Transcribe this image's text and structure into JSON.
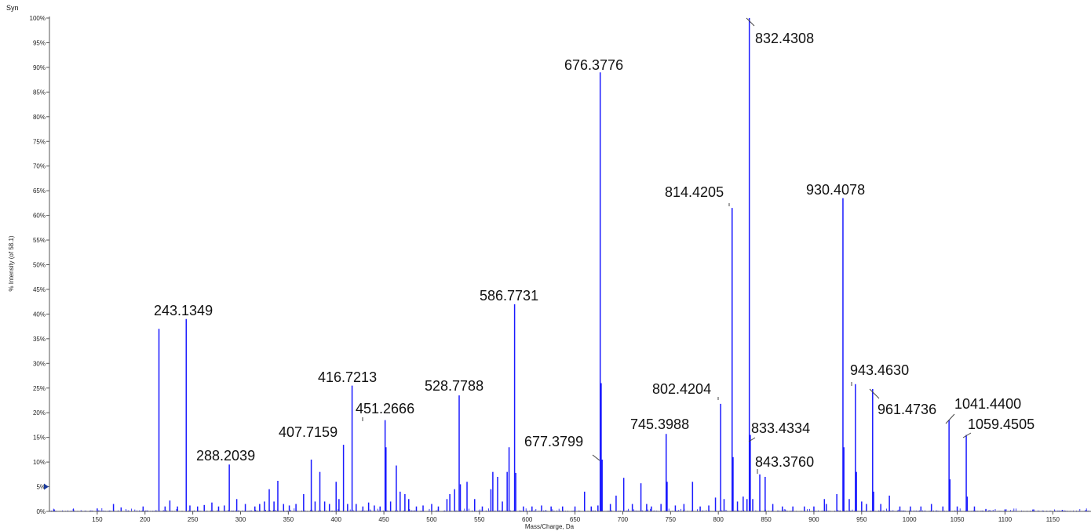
{
  "panel_label": "Syn",
  "chart_data": {
    "type": "bar",
    "title": "",
    "xlabel": "Mass/Charge, Da",
    "ylabel": "% Intensity (of 58.1)",
    "xlim": [
      100,
      1190
    ],
    "ylim": [
      0,
      100
    ],
    "xticks": [
      150,
      200,
      250,
      300,
      350,
      400,
      450,
      500,
      550,
      600,
      650,
      700,
      750,
      800,
      850,
      900,
      950,
      1000,
      1050,
      1100,
      1150
    ],
    "yticks": [
      0,
      5,
      10,
      15,
      20,
      25,
      30,
      35,
      40,
      45,
      50,
      55,
      60,
      65,
      70,
      75,
      80,
      85,
      90,
      95,
      100
    ],
    "ytick_suffix": "%",
    "marker_level": 5,
    "series_color": "#1a1aff",
    "peaks": [
      {
        "x": 105,
        "y": 0.4
      },
      {
        "x": 125,
        "y": 0.5
      },
      {
        "x": 150,
        "y": 0.6
      },
      {
        "x": 167,
        "y": 1.5
      },
      {
        "x": 175,
        "y": 0.8
      },
      {
        "x": 198,
        "y": 1.0
      },
      {
        "x": 214.6,
        "y": 37
      },
      {
        "x": 221,
        "y": 1.0
      },
      {
        "x": 226,
        "y": 2.2
      },
      {
        "x": 234,
        "y": 1.0
      },
      {
        "x": 243.1349,
        "y": 39
      },
      {
        "x": 247,
        "y": 1.2
      },
      {
        "x": 255,
        "y": 1.0
      },
      {
        "x": 262,
        "y": 1.3
      },
      {
        "x": 270,
        "y": 1.8
      },
      {
        "x": 277,
        "y": 1.0
      },
      {
        "x": 283,
        "y": 1.2
      },
      {
        "x": 288.2039,
        "y": 9.5
      },
      {
        "x": 296,
        "y": 2.5
      },
      {
        "x": 305,
        "y": 1.5
      },
      {
        "x": 315,
        "y": 1.0
      },
      {
        "x": 320,
        "y": 1.5
      },
      {
        "x": 325,
        "y": 2.0
      },
      {
        "x": 330,
        "y": 4.5
      },
      {
        "x": 335,
        "y": 2.0
      },
      {
        "x": 339,
        "y": 6.2
      },
      {
        "x": 345,
        "y": 1.5
      },
      {
        "x": 351,
        "y": 1.2
      },
      {
        "x": 358,
        "y": 1.5
      },
      {
        "x": 366,
        "y": 3.5
      },
      {
        "x": 374,
        "y": 10.5
      },
      {
        "x": 378,
        "y": 2.0
      },
      {
        "x": 383,
        "y": 8.0
      },
      {
        "x": 388,
        "y": 2.0
      },
      {
        "x": 393,
        "y": 1.5
      },
      {
        "x": 400,
        "y": 6.0
      },
      {
        "x": 403,
        "y": 2.5
      },
      {
        "x": 407.7159,
        "y": 13.5
      },
      {
        "x": 412,
        "y": 1.5
      },
      {
        "x": 416.7213,
        "y": 25.5
      },
      {
        "x": 421,
        "y": 1.5
      },
      {
        "x": 428,
        "y": 1.0
      },
      {
        "x": 434,
        "y": 1.8
      },
      {
        "x": 440,
        "y": 1.2
      },
      {
        "x": 446,
        "y": 1.0
      },
      {
        "x": 451.2666,
        "y": 18.5
      },
      {
        "x": 452.2,
        "y": 13.0
      },
      {
        "x": 457,
        "y": 2.0
      },
      {
        "x": 463,
        "y": 9.3
      },
      {
        "x": 467,
        "y": 4.0
      },
      {
        "x": 472,
        "y": 3.5
      },
      {
        "x": 476,
        "y": 2.5
      },
      {
        "x": 484,
        "y": 1.0
      },
      {
        "x": 491,
        "y": 1.2
      },
      {
        "x": 500,
        "y": 1.5
      },
      {
        "x": 507,
        "y": 1.0
      },
      {
        "x": 516,
        "y": 2.5
      },
      {
        "x": 519,
        "y": 3.5
      },
      {
        "x": 524,
        "y": 4.5
      },
      {
        "x": 528.7788,
        "y": 23.5
      },
      {
        "x": 530,
        "y": 5.5
      },
      {
        "x": 537,
        "y": 6.0
      },
      {
        "x": 545,
        "y": 2.5
      },
      {
        "x": 553,
        "y": 1.0
      },
      {
        "x": 562,
        "y": 4.5
      },
      {
        "x": 564,
        "y": 8.0
      },
      {
        "x": 569,
        "y": 7.0
      },
      {
        "x": 574,
        "y": 2.0
      },
      {
        "x": 579,
        "y": 8.0
      },
      {
        "x": 581,
        "y": 13.0
      },
      {
        "x": 586.7731,
        "y": 42
      },
      {
        "x": 588,
        "y": 7.8
      },
      {
        "x": 596,
        "y": 1.0
      },
      {
        "x": 605,
        "y": 1.0
      },
      {
        "x": 615,
        "y": 1.2
      },
      {
        "x": 625,
        "y": 1.0
      },
      {
        "x": 637,
        "y": 1.0
      },
      {
        "x": 650,
        "y": 1.0
      },
      {
        "x": 660,
        "y": 4.0
      },
      {
        "x": 667,
        "y": 1.0
      },
      {
        "x": 674,
        "y": 1.2
      },
      {
        "x": 676.3776,
        "y": 89
      },
      {
        "x": 677.3799,
        "y": 26
      },
      {
        "x": 678.4,
        "y": 10.5
      },
      {
        "x": 687,
        "y": 1.5
      },
      {
        "x": 693,
        "y": 3.2
      },
      {
        "x": 701,
        "y": 6.8
      },
      {
        "x": 710,
        "y": 1.5
      },
      {
        "x": 719,
        "y": 5.7
      },
      {
        "x": 725,
        "y": 1.5
      },
      {
        "x": 730,
        "y": 1.0
      },
      {
        "x": 740,
        "y": 1.5
      },
      {
        "x": 745.3988,
        "y": 15.7
      },
      {
        "x": 746.4,
        "y": 6.0
      },
      {
        "x": 755,
        "y": 1.2
      },
      {
        "x": 764,
        "y": 1.5
      },
      {
        "x": 773,
        "y": 6.0
      },
      {
        "x": 781,
        "y": 1.0
      },
      {
        "x": 790,
        "y": 1.2
      },
      {
        "x": 797,
        "y": 2.8
      },
      {
        "x": 802.4204,
        "y": 21.8
      },
      {
        "x": 806,
        "y": 2.5
      },
      {
        "x": 814.4205,
        "y": 61.5
      },
      {
        "x": 815.4,
        "y": 11.0
      },
      {
        "x": 820,
        "y": 2.0
      },
      {
        "x": 826,
        "y": 3.0
      },
      {
        "x": 830,
        "y": 2.5
      },
      {
        "x": 832.4308,
        "y": 100
      },
      {
        "x": 833.4334,
        "y": 15.5
      },
      {
        "x": 836,
        "y": 2.5
      },
      {
        "x": 843.376,
        "y": 7.5
      },
      {
        "x": 849,
        "y": 7.0
      },
      {
        "x": 857,
        "y": 1.5
      },
      {
        "x": 867,
        "y": 1.0
      },
      {
        "x": 878,
        "y": 1.0
      },
      {
        "x": 890,
        "y": 1.0
      },
      {
        "x": 900,
        "y": 1.0
      },
      {
        "x": 911,
        "y": 2.5
      },
      {
        "x": 913,
        "y": 1.5
      },
      {
        "x": 924,
        "y": 3.5
      },
      {
        "x": 930.4078,
        "y": 63.5
      },
      {
        "x": 931.4,
        "y": 13.0
      },
      {
        "x": 937,
        "y": 2.5
      },
      {
        "x": 943.463,
        "y": 25.8
      },
      {
        "x": 944.5,
        "y": 8.0
      },
      {
        "x": 950,
        "y": 2.0
      },
      {
        "x": 955,
        "y": 1.5
      },
      {
        "x": 961.4736,
        "y": 24.8
      },
      {
        "x": 962.5,
        "y": 4.0
      },
      {
        "x": 970,
        "y": 1.5
      },
      {
        "x": 979,
        "y": 3.2
      },
      {
        "x": 990,
        "y": 1.0
      },
      {
        "x": 1001,
        "y": 1.0
      },
      {
        "x": 1012,
        "y": 1.0
      },
      {
        "x": 1023,
        "y": 1.5
      },
      {
        "x": 1035,
        "y": 1.0
      },
      {
        "x": 1041.44,
        "y": 18.5
      },
      {
        "x": 1042.4,
        "y": 6.5
      },
      {
        "x": 1050,
        "y": 1.0
      },
      {
        "x": 1059.4505,
        "y": 15.5
      },
      {
        "x": 1060.5,
        "y": 3.0
      },
      {
        "x": 1068,
        "y": 1.0
      },
      {
        "x": 1080,
        "y": 0.5
      },
      {
        "x": 1100,
        "y": 0.4
      },
      {
        "x": 1130,
        "y": 0.4
      },
      {
        "x": 1160,
        "y": 0.3
      },
      {
        "x": 1185,
        "y": 0.3
      }
    ],
    "annotations": [
      {
        "x": 243.1349,
        "text": "243.1349"
      },
      {
        "x": 288.2039,
        "text": "288.2039"
      },
      {
        "x": 407.7159,
        "text": "407.7159"
      },
      {
        "x": 416.7213,
        "text": "416.7213"
      },
      {
        "x": 451.2666,
        "text": "451.2666"
      },
      {
        "x": 528.7788,
        "text": "528.7788"
      },
      {
        "x": 586.7731,
        "text": "586.7731"
      },
      {
        "x": 676.3776,
        "text": "676.3776"
      },
      {
        "x": 677.3799,
        "text": "677.3799"
      },
      {
        "x": 745.3988,
        "text": "745.3988"
      },
      {
        "x": 802.4204,
        "text": "802.4204"
      },
      {
        "x": 814.4205,
        "text": "814.4205"
      },
      {
        "x": 832.4308,
        "text": "832.4308"
      },
      {
        "x": 833.4334,
        "text": "833.4334"
      },
      {
        "x": 843.376,
        "text": "843.3760"
      },
      {
        "x": 930.4078,
        "text": "930.4078"
      },
      {
        "x": 943.463,
        "text": "943.4630"
      },
      {
        "x": 961.4736,
        "text": "961.4736"
      },
      {
        "x": 1041.44,
        "text": "1041.4400"
      },
      {
        "x": 1059.4505,
        "text": "1059.4505"
      }
    ]
  }
}
